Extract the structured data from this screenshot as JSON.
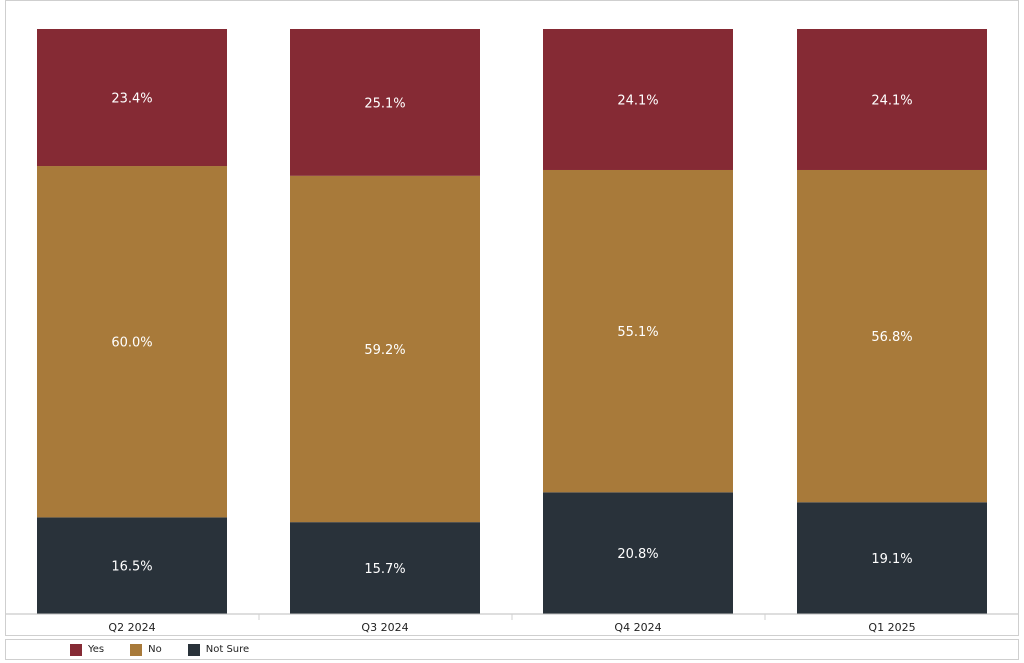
{
  "chart_data": {
    "type": "bar",
    "stacked": true,
    "percent_stacked": true,
    "categories": [
      "Q2 2024",
      "Q3 2024",
      "Q4 2024",
      "Q1 2025"
    ],
    "series": [
      {
        "name": "Not Sure",
        "color": "#29323a",
        "values": [
          16.5,
          15.7,
          20.8,
          19.1
        ],
        "labels": [
          "16.5%",
          "15.7%",
          "20.8%",
          "19.1%"
        ]
      },
      {
        "name": "No",
        "color": "#a87a3a",
        "values": [
          60.0,
          59.2,
          55.1,
          56.8
        ],
        "labels": [
          "60.0%",
          "59.2%",
          "55.1%",
          "56.8%"
        ]
      },
      {
        "name": "Yes",
        "color": "#852a34",
        "values": [
          23.4,
          25.1,
          24.1,
          24.1
        ],
        "labels": [
          "23.4%",
          "25.1%",
          "24.1%",
          "24.1%"
        ]
      }
    ],
    "legend": {
      "placement": "bottom-left",
      "order": [
        "Yes",
        "No",
        "Not Sure"
      ]
    },
    "grid": false,
    "title": "",
    "xlabel": "",
    "ylabel": ""
  }
}
